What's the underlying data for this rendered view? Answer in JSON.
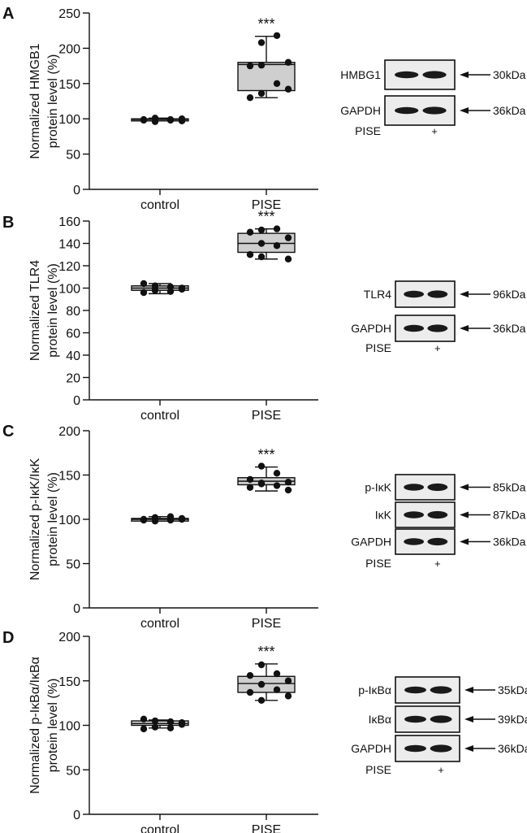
{
  "chart_data": [
    {
      "panel_label": "A",
      "type": "box",
      "ylabel_lines": [
        "Normalized HMGB1",
        "protein level (%)"
      ],
      "ylim": [
        0,
        250
      ],
      "yticks": [
        0,
        50,
        100,
        150,
        200,
        250
      ],
      "categories": [
        "control",
        "PISE"
      ],
      "boxes": [
        {
          "min": 97,
          "q1": 97,
          "median": 99,
          "q3": 100,
          "max": 101,
          "points": [
            96,
            98,
            99,
            100,
            101,
            99,
            98,
            97
          ]
        },
        {
          "min": 130,
          "q1": 140,
          "median": 177,
          "q3": 180,
          "max": 217,
          "points": [
            208,
            218,
            175,
            180,
            176,
            150,
            130,
            142,
            136
          ]
        }
      ],
      "significance": "***",
      "blot": {
        "rows": [
          {
            "label": "HMBG1",
            "size": "30kDa"
          },
          {
            "label": "GAPDH",
            "size": "36kDa"
          }
        ],
        "footer_label": "PISE",
        "footer_signs": [
          "",
          "+"
        ]
      }
    },
    {
      "panel_label": "B",
      "type": "box",
      "ylabel_lines": [
        "Normalized TLR4",
        "protein level (%)"
      ],
      "ylim": [
        0,
        160
      ],
      "yticks": [
        0,
        20,
        40,
        60,
        80,
        100,
        120,
        140,
        160
      ],
      "categories": [
        "control",
        "PISE"
      ],
      "boxes": [
        {
          "min": 95,
          "q1": 98,
          "median": 100,
          "q3": 102,
          "max": 104,
          "points": [
            102,
            101,
            104,
            99,
            98,
            97,
            96,
            100
          ]
        },
        {
          "min": 126,
          "q1": 132,
          "median": 140,
          "q3": 149,
          "max": 153,
          "points": [
            152,
            153,
            150,
            145,
            140,
            138,
            130,
            126,
            128
          ]
        }
      ],
      "significance": "***",
      "blot": {
        "rows": [
          {
            "label": "TLR4",
            "size": "96kDa"
          },
          {
            "label": "GAPDH",
            "size": "36kDa"
          }
        ],
        "footer_label": "PISE",
        "footer_signs": [
          "",
          "+"
        ]
      }
    },
    {
      "panel_label": "C",
      "type": "box",
      "ylabel_lines": [
        "Normalized p-IκK/IκK",
        "protein level (%)"
      ],
      "ylim": [
        0,
        200
      ],
      "yticks": [
        0,
        50,
        100,
        150,
        200
      ],
      "categories": [
        "control",
        "PISE"
      ],
      "boxes": [
        {
          "min": 98,
          "q1": 98,
          "median": 100,
          "q3": 101,
          "max": 103,
          "points": [
            98,
            99,
            100,
            101,
            102,
            103,
            99,
            100
          ]
        },
        {
          "min": 132,
          "q1": 139,
          "median": 143,
          "q3": 147,
          "max": 159,
          "points": [
            160,
            152,
            145,
            142,
            140,
            138,
            136,
            133,
            141
          ]
        }
      ],
      "significance": "***",
      "blot": {
        "rows": [
          {
            "label": "p-IκK",
            "size": "85kDa"
          },
          {
            "label": "IκK",
            "size": "87kDa"
          },
          {
            "label": "GAPDH",
            "size": "36kDa"
          }
        ],
        "footer_label": "PISE",
        "footer_signs": [
          "",
          "+"
        ]
      }
    },
    {
      "panel_label": "D",
      "type": "box",
      "ylabel_lines": [
        "Normalized p-IκBα/IκBα",
        "protein level (%)"
      ],
      "ylim": [
        0,
        200
      ],
      "yticks": [
        0,
        50,
        100,
        150,
        200
      ],
      "categories": [
        "control",
        "PISE"
      ],
      "boxes": [
        {
          "min": 97,
          "q1": 100,
          "median": 102,
          "q3": 105,
          "max": 106,
          "points": [
            105,
            104,
            107,
            103,
            98,
            97,
            96,
            101
          ]
        },
        {
          "min": 128,
          "q1": 137,
          "median": 147,
          "q3": 155,
          "max": 169,
          "points": [
            168,
            158,
            156,
            150,
            146,
            140,
            137,
            133,
            128
          ]
        }
      ],
      "significance": "***",
      "blot": {
        "rows": [
          {
            "label": "p-IκBα",
            "size": "35kDa"
          },
          {
            "label": "IκBα",
            "size": "39kDa"
          },
          {
            "label": "GAPDH",
            "size": "36kDa"
          }
        ],
        "footer_label": "PISE",
        "footer_signs": [
          "",
          "+"
        ]
      }
    }
  ]
}
